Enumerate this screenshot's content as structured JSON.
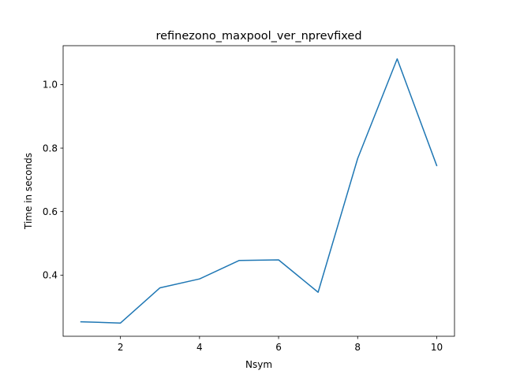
{
  "chart_data": {
    "type": "line",
    "title": "refinezono_maxpool_ver_nprevfixed",
    "xlabel": "Nsym",
    "ylabel": "Time in seconds",
    "x": [
      1,
      2,
      3,
      4,
      5,
      6,
      7,
      8,
      9,
      10
    ],
    "series": [
      {
        "values": [
          0.253,
          0.249,
          0.36,
          0.388,
          0.446,
          0.448,
          0.346,
          0.767,
          1.081,
          0.745
        ],
        "color": "#1f77b4"
      }
    ],
    "xlim": [
      0.55,
      10.45
    ],
    "ylim": [
      0.2074,
      1.1226
    ],
    "xticks": [
      2,
      4,
      6,
      8,
      10
    ],
    "xtick_labels": [
      "2",
      "4",
      "6",
      "8",
      "10"
    ],
    "yticks": [
      0.4,
      0.6,
      0.8,
      1.0
    ],
    "ytick_labels": [
      "0.4",
      "0.6",
      "0.8",
      "1.0"
    ],
    "grid": false,
    "legend": "none"
  }
}
